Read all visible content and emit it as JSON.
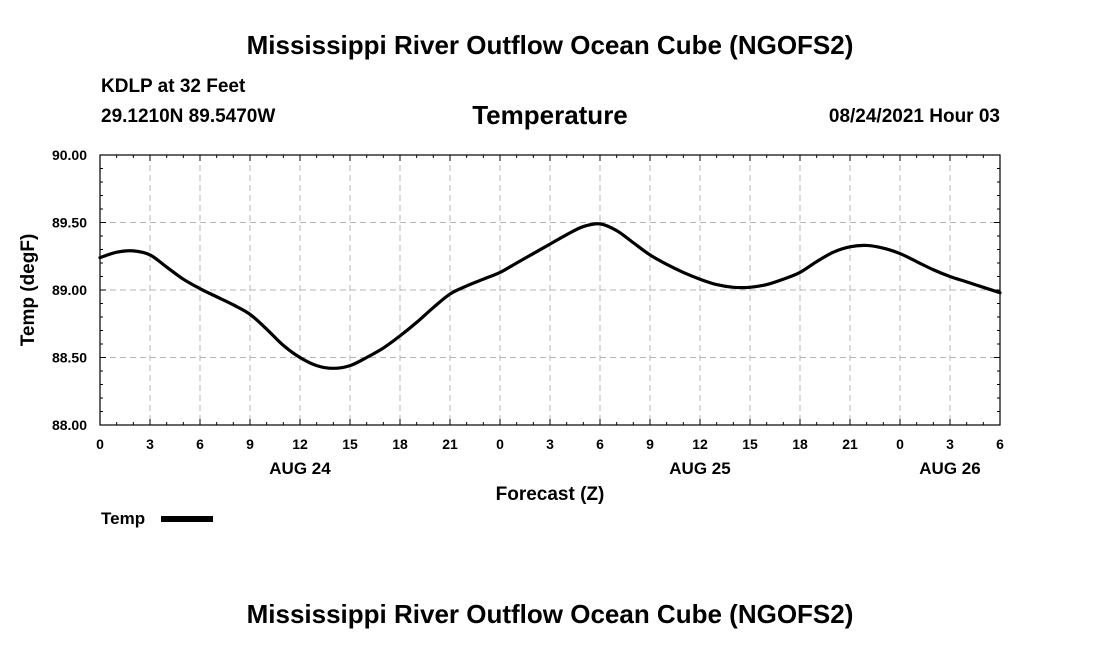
{
  "header": {
    "title": "Mississippi River Outflow Ocean Cube (NGOFS2)",
    "station": "KDLP at 32 Feet",
    "coordinates": "29.1210N  89.5470W",
    "chart_title": "Temperature",
    "datetime": "08/24/2021 Hour 03"
  },
  "footer": {
    "title": "Mississippi River Outflow Ocean Cube (NGOFS2)"
  },
  "legend": {
    "label": "Temp",
    "color": "#000000"
  },
  "chart_data": {
    "type": "line",
    "title": "Temperature",
    "xlabel": "Forecast (Z)",
    "ylabel": "Temp (degF)",
    "xlim": [
      0,
      54
    ],
    "ylim": [
      88.0,
      90.0
    ],
    "x_ticks": [
      0,
      3,
      6,
      9,
      12,
      15,
      18,
      21,
      24,
      27,
      30,
      33,
      36,
      39,
      42,
      45,
      48,
      51,
      54
    ],
    "x_tick_labels": [
      "0",
      "3",
      "6",
      "9",
      "12",
      "15",
      "18",
      "21",
      "0",
      "3",
      "6",
      "9",
      "12",
      "15",
      "18",
      "21",
      "0",
      "3",
      "6"
    ],
    "y_ticks": [
      88.0,
      88.5,
      89.0,
      89.5,
      90.0
    ],
    "y_tick_labels": [
      "88.00",
      "88.50",
      "89.00",
      "89.50",
      "90.00"
    ],
    "date_labels": [
      {
        "x": 12,
        "label": "AUG 24"
      },
      {
        "x": 36,
        "label": "AUG 25"
      },
      {
        "x": 51,
        "label": "AUG 26"
      }
    ],
    "grid": true,
    "series": [
      {
        "name": "Temp",
        "x": [
          0,
          1,
          2,
          3,
          4,
          5,
          6,
          7,
          8,
          9,
          10,
          11,
          12,
          13,
          14,
          15,
          16,
          17,
          18,
          19,
          20,
          21,
          22,
          23,
          24,
          25,
          26,
          27,
          28,
          29,
          30,
          31,
          32,
          33,
          34,
          35,
          36,
          37,
          38,
          39,
          40,
          41,
          42,
          43,
          44,
          45,
          46,
          47,
          48,
          49,
          50,
          51,
          52,
          53,
          54
        ],
        "values": [
          89.24,
          89.28,
          89.29,
          89.26,
          89.17,
          89.08,
          89.01,
          88.95,
          88.89,
          88.82,
          88.71,
          88.59,
          88.5,
          88.44,
          88.42,
          88.44,
          88.5,
          88.57,
          88.66,
          88.76,
          88.87,
          88.97,
          89.03,
          89.08,
          89.13,
          89.2,
          89.27,
          89.34,
          89.41,
          89.47,
          89.49,
          89.44,
          89.35,
          89.26,
          89.19,
          89.13,
          89.08,
          89.04,
          89.02,
          89.02,
          89.04,
          89.08,
          89.13,
          89.21,
          89.28,
          89.32,
          89.33,
          89.31,
          89.27,
          89.21,
          89.15,
          89.1,
          89.06,
          89.02,
          88.98
        ]
      }
    ]
  }
}
